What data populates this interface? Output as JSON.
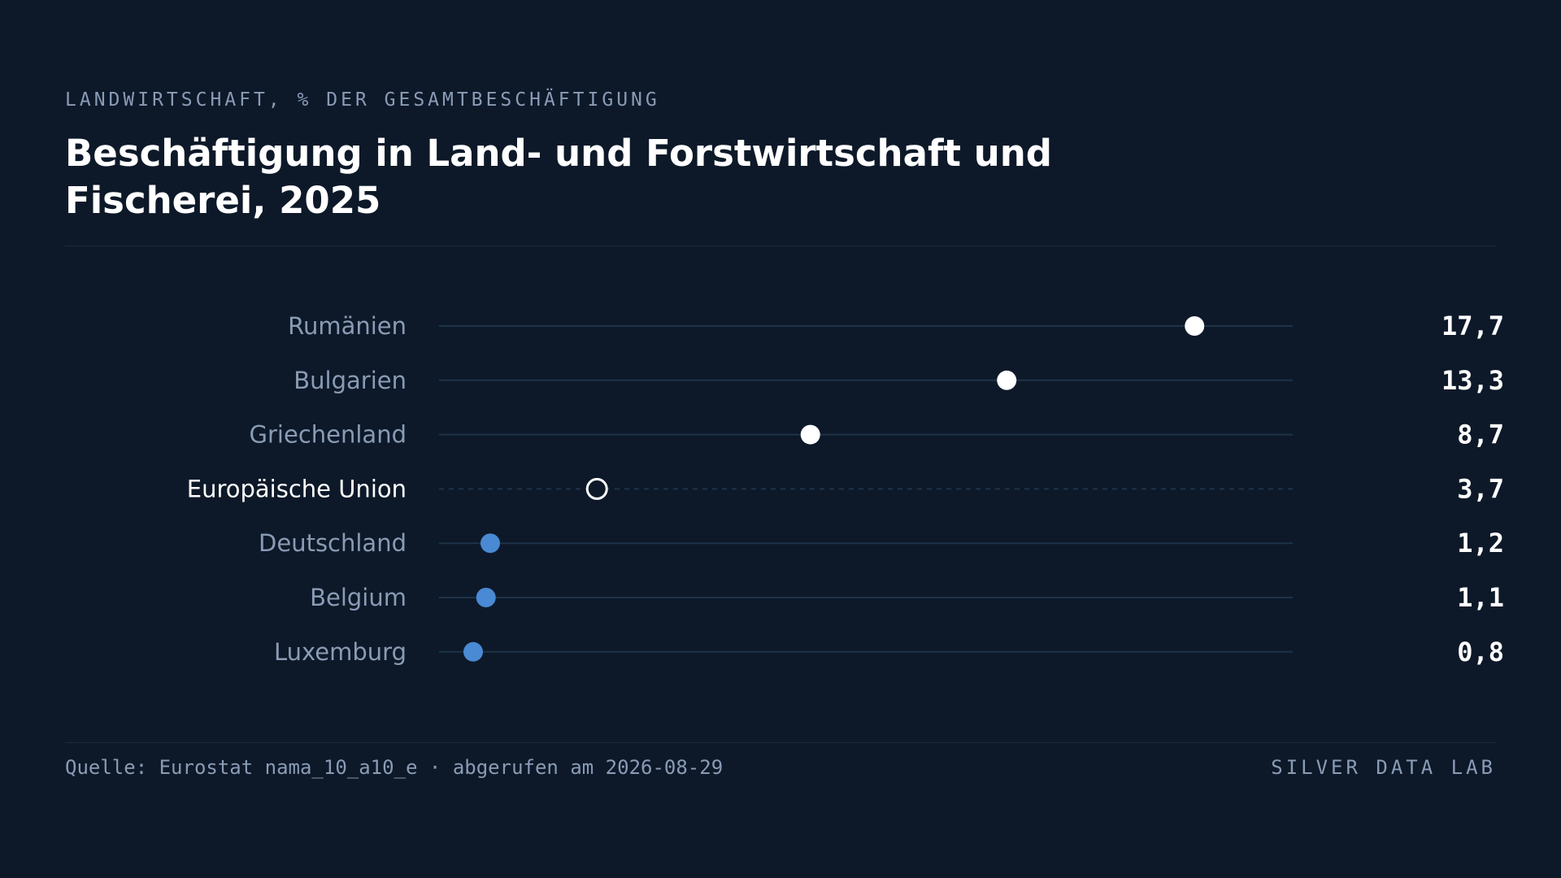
{
  "header": {
    "kicker": "LANDWIRTSCHAFT, % DER GESAMTBESCHÄFTIGUNG",
    "title": "Beschäftigung in Land- und Forstwirtschaft und Fischerei, 2025"
  },
  "footer": {
    "source": "Quelle: Eurostat nama_10_a10_e · abgerufen am 2026-08-29",
    "brand": "SILVER DATA LAB"
  },
  "colors": {
    "background": "#0d1929",
    "high": "#ffffff",
    "low": "#4a8ad4",
    "reference": "#ffffff",
    "track": "#1e3349",
    "label": "#8a9bb5",
    "label_highlight": "#ffffff"
  },
  "chart_data": {
    "type": "dot",
    "title": "Beschäftigung in Land- und Forstwirtschaft und Fischerei, 2025",
    "unit": "% der Gesamtbeschäftigung",
    "xlim": [
      0,
      20
    ],
    "rows": [
      {
        "label": "Rumänien",
        "value": 17.7,
        "display": "17,7",
        "style": "high"
      },
      {
        "label": "Bulgarien",
        "value": 13.3,
        "display": "13,3",
        "style": "high"
      },
      {
        "label": "Griechenland",
        "value": 8.7,
        "display": "8,7",
        "style": "high"
      },
      {
        "label": "Europäische Union",
        "value": 3.7,
        "display": "3,7",
        "style": "reference"
      },
      {
        "label": "Deutschland",
        "value": 1.2,
        "display": "1,2",
        "style": "low"
      },
      {
        "label": "Belgium",
        "value": 1.1,
        "display": "1,1",
        "style": "low"
      },
      {
        "label": "Luxemburg",
        "value": 0.8,
        "display": "0,8",
        "style": "low"
      }
    ]
  }
}
